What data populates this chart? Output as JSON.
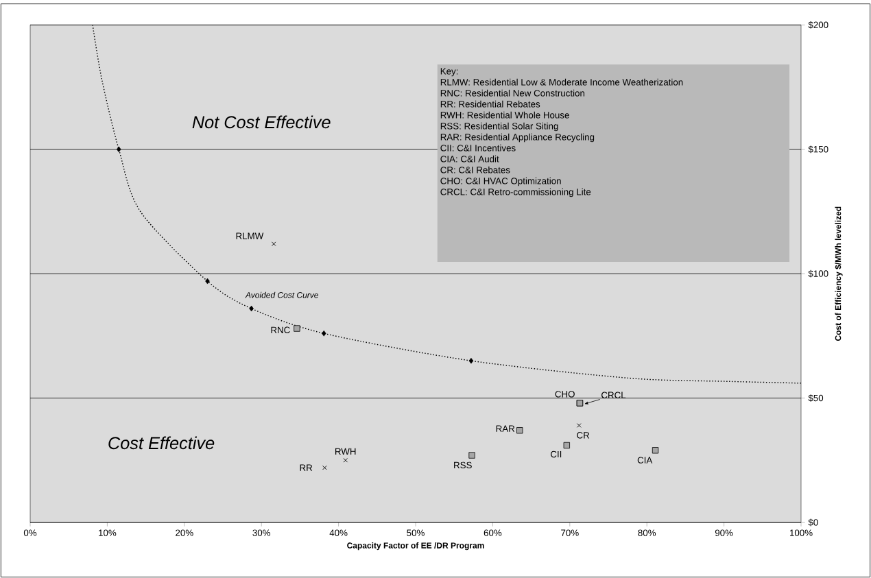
{
  "chart_data": {
    "type": "scatter",
    "xlabel": "Capacity Factor of EE /DR Program",
    "ylabel": "Cost of Efficiency $/MWh levelized",
    "xlim": [
      0,
      100
    ],
    "ylim": [
      0,
      200
    ],
    "xticks": [
      {
        "value": 0,
        "label": "0%"
      },
      {
        "value": 10,
        "label": "10%"
      },
      {
        "value": 20,
        "label": "20%"
      },
      {
        "value": 30,
        "label": "30%"
      },
      {
        "value": 40,
        "label": "40%"
      },
      {
        "value": 50,
        "label": "50%"
      },
      {
        "value": 60,
        "label": "60%"
      },
      {
        "value": 70,
        "label": "70%"
      },
      {
        "value": 80,
        "label": "80%"
      },
      {
        "value": 90,
        "label": "90%"
      },
      {
        "value": 100,
        "label": "100%"
      }
    ],
    "yticks": [
      {
        "value": 0,
        "label": "$0"
      },
      {
        "value": 50,
        "label": "$50"
      },
      {
        "value": 100,
        "label": "$100"
      },
      {
        "value": 150,
        "label": "$150"
      },
      {
        "value": 200,
        "label": "$200"
      }
    ],
    "grid": "y",
    "series": [
      {
        "name": "Avoided Cost Curve",
        "type": "line",
        "line_style": "dotted",
        "marker": "none",
        "color": "#000000",
        "x": [
          8.1,
          9.3,
          11.5,
          14.3,
          23.0,
          28.7,
          38.1,
          57.2,
          77.8,
          90.7,
          100
        ],
        "values": [
          200,
          178,
          150,
          125,
          97,
          86,
          76,
          65,
          58,
          56.7,
          56
        ]
      },
      {
        "marker": "diamond",
        "color": "#000000",
        "x": [
          11.5,
          23.0,
          28.7,
          38.1,
          57.2
        ],
        "values": [
          150,
          97,
          86,
          76,
          65
        ]
      },
      {
        "marker": "cross",
        "color": "#000000",
        "x": [
          31.6,
          38.2,
          40.9,
          71.2
        ],
        "values": [
          112,
          22,
          25,
          39
        ]
      },
      {
        "marker": "square",
        "color": "#a6a6a6",
        "x": [
          34.6,
          57.3,
          63.5,
          69.6,
          81.1,
          71.3,
          71.3
        ],
        "values": [
          78,
          27,
          37,
          31,
          29,
          48,
          48
        ]
      }
    ],
    "annotations": [
      {
        "text": "RLMW",
        "x": 31.6,
        "y": 112
      },
      {
        "text": "RNC",
        "x": 34.6,
        "y": 78
      },
      {
        "text": "RR",
        "x": 38.2,
        "y": 22
      },
      {
        "text": "RWH",
        "x": 40.9,
        "y": 25
      },
      {
        "text": "RSS",
        "x": 57.3,
        "y": 27
      },
      {
        "text": "RAR",
        "x": 63.5,
        "y": 37
      },
      {
        "text": "CII",
        "x": 69.6,
        "y": 31
      },
      {
        "text": "CIA",
        "x": 81.1,
        "y": 29
      },
      {
        "text": "CR",
        "x": 71.2,
        "y": 39
      },
      {
        "text": "CHO",
        "x": 71.3,
        "y": 48
      },
      {
        "text": "CRCL",
        "x": 71.3,
        "y": 48
      },
      "Not Cost Effective",
      "Cost Effective",
      "Key:",
      "RLMW: Residential Low & Moderate Income Weatherization",
      "RNC: Residential New Construction",
      "RR: Residential Rebates",
      "RWH: Residential Whole House",
      "RSS: Residential Solar Siting",
      "RAR: Residential Appliance Recycling",
      "CII: C&I Incentives",
      "CIA: C&I Audit",
      "CR: C&I Rebates",
      "CHO: C&I HVAC Optimization",
      "CRCL: C&I Retro-commissioning Lite"
    ]
  }
}
